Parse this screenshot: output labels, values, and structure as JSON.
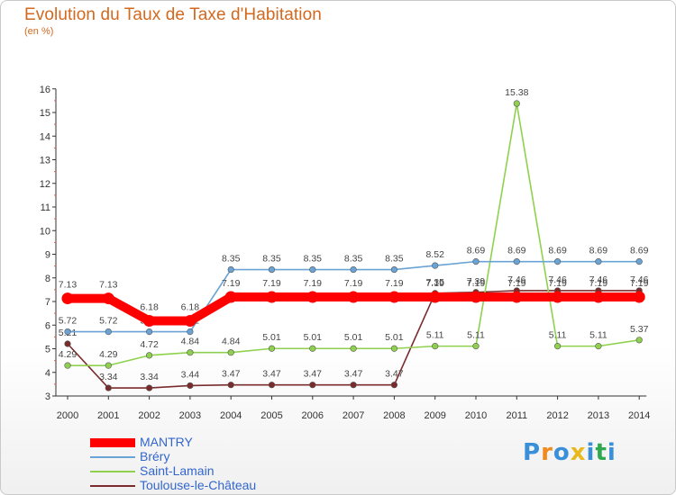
{
  "title": "Evolution du Taux de Taxe d'Habitation",
  "unit": "(en %)",
  "logo": "Proxiti",
  "chart_data": {
    "type": "line",
    "title": "Evolution du Taux de Taxe d'Habitation",
    "ylabel": "(en %)",
    "xlabel": "",
    "ylim": [
      3,
      16
    ],
    "yticks": [
      3,
      4,
      5,
      6,
      7,
      8,
      9,
      10,
      11,
      12,
      13,
      14,
      15,
      16
    ],
    "x": [
      "2000",
      "2001",
      "2002",
      "2003",
      "2004",
      "2005",
      "2006",
      "2007",
      "2008",
      "2009",
      "2010",
      "2011",
      "2012",
      "2013",
      "2014"
    ],
    "grid": false,
    "legend": "bottom-left",
    "series": [
      {
        "name": "MANTRY",
        "color": "#ff0000",
        "values": [
          7.13,
          7.13,
          6.18,
          6.18,
          7.19,
          7.19,
          7.19,
          7.19,
          7.19,
          7.19,
          7.19,
          7.19,
          7.19,
          7.19,
          7.19
        ],
        "labels": [
          "7.13",
          "7.13",
          "6.18",
          "6.18",
          "7.19",
          "7.19",
          "7.19",
          "7.19",
          "7.19",
          "7.19",
          "7.19",
          "7.19",
          "7.19",
          "7.19",
          "7.19"
        ]
      },
      {
        "name": "Bréry",
        "color": "#6aa3d5",
        "values": [
          5.72,
          5.72,
          5.72,
          5.72,
          8.35,
          8.35,
          8.35,
          8.35,
          8.35,
          8.52,
          8.69,
          8.69,
          8.69,
          8.69,
          8.69
        ],
        "labels": [
          "5.72",
          "5.72",
          "5.72",
          "5.72",
          "8.35",
          "8.35",
          "8.35",
          "8.35",
          "8.35",
          "8.52",
          "8.69",
          "8.69",
          "8.69",
          "8.69",
          "8.69"
        ]
      },
      {
        "name": "Saint-Lamain",
        "color": "#8fd14f",
        "values": [
          4.29,
          4.29,
          4.72,
          4.84,
          4.84,
          5.01,
          5.01,
          5.01,
          5.01,
          5.11,
          5.11,
          15.38,
          5.11,
          5.11,
          5.37
        ],
        "labels": [
          "4.29",
          "4.29",
          "4.72",
          "4.84",
          "4.84",
          "5.01",
          "5.01",
          "5.01",
          "5.01",
          "5.11",
          "5.11",
          "15.38",
          "5.11",
          "5.11",
          "5.37"
        ]
      },
      {
        "name": "Toulouse-le-Château",
        "color": "#7a2c2c",
        "values": [
          5.21,
          3.34,
          3.34,
          3.44,
          3.47,
          3.47,
          3.47,
          3.47,
          3.47,
          7.35,
          7.39,
          7.46,
          7.46,
          7.46,
          7.46
        ],
        "labels": [
          "5.21",
          "3.34",
          "3.34",
          "3.44",
          "3.47",
          "3.47",
          "3.47",
          "3.47",
          "3.47",
          "7.35",
          "7.39",
          "7.46",
          "7.46",
          "7.46",
          "7.46"
        ]
      }
    ]
  }
}
